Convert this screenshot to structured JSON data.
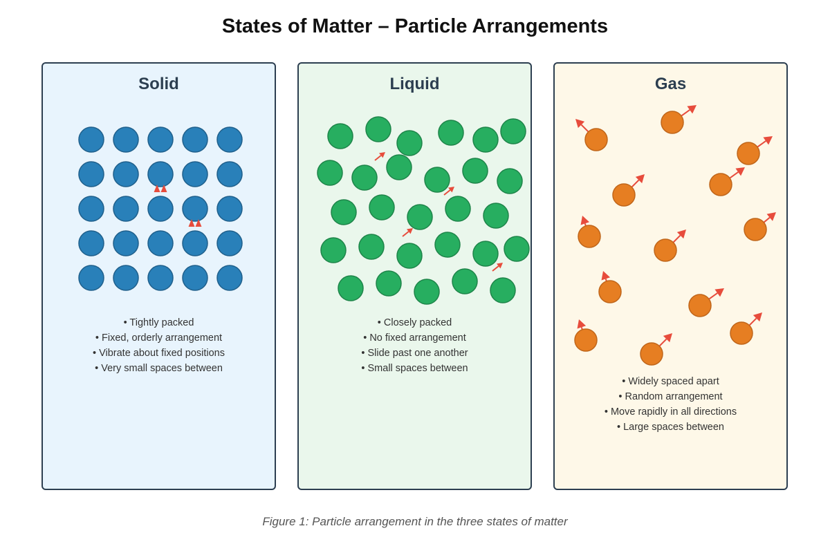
{
  "title": "States of Matter – Particle Arrangements",
  "caption": "Figure 1: Particle arrangement in the three states of matter",
  "colors": {
    "arrow": "#e74c3c",
    "border": "#2c3e50"
  },
  "panels": [
    {
      "id": "solid",
      "title": "Solid",
      "background": "#e8f4fd",
      "particle_fill": "#2980b9",
      "particle_stroke": "#1f5f8b",
      "bullets": [
        "• Tightly packed",
        "• Fixed, orderly arrangement",
        "• Vibrate about fixed positions",
        "• Very small spaces between"
      ]
    },
    {
      "id": "liquid",
      "title": "Liquid",
      "background": "#eaf7ec",
      "particle_fill": "#27ae60",
      "particle_stroke": "#1e8449",
      "bullets": [
        "• Closely packed",
        "• No fixed arrangement",
        "• Slide past one another",
        "• Small spaces between"
      ]
    },
    {
      "id": "gas",
      "title": "Gas",
      "background": "#fef8e8",
      "particle_fill": "#e67e22",
      "particle_stroke": "#c0661a",
      "bullets": [
        "• Widely spaced apart",
        "• Random arrangement",
        "• Move rapidly in all directions",
        "• Large spaces between"
      ]
    }
  ]
}
